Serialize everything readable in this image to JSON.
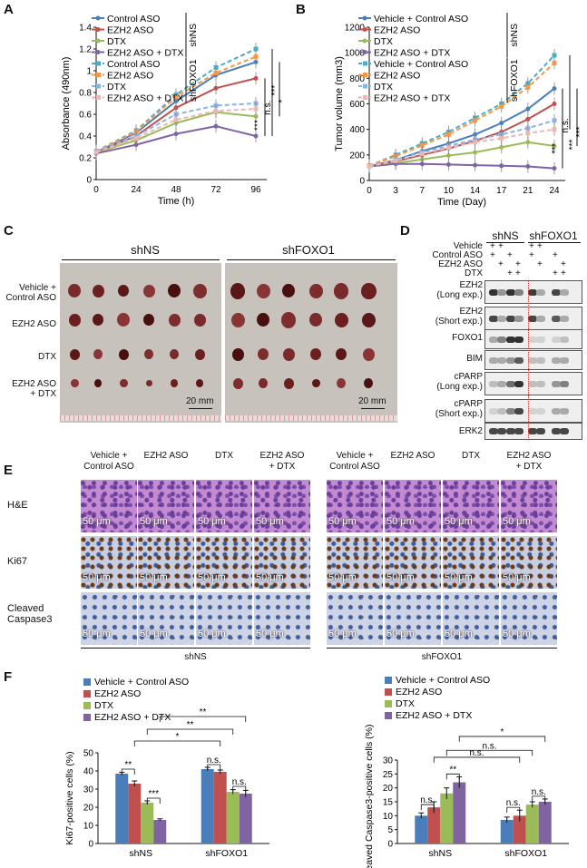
{
  "panels": {
    "A": "A",
    "B": "B",
    "C": "C",
    "D": "D",
    "E": "E",
    "F": "F"
  },
  "colors": {
    "blue": "#4a7ebb",
    "red": "#c0504d",
    "green": "#9bbb59",
    "purple": "#8064a2",
    "orange": "#f79646",
    "lblue": "#4bacc6",
    "lpurple": "#8db3e2",
    "pink": "#e6b9b8"
  },
  "chart_data": [
    {
      "type": "line",
      "panel": "A",
      "xlabel": "Time (h)",
      "ylabel": "Absorbance (490nm)",
      "x": [
        0,
        24,
        48,
        72,
        96
      ],
      "ylim": [
        0,
        1.4
      ],
      "xticks": [
        "0",
        "24",
        "48",
        "72",
        "96"
      ],
      "yticks": [
        "0",
        "0.2",
        "0.4",
        "0.6",
        "0.8",
        "1",
        "1.2",
        "1.4"
      ],
      "group_labels": [
        "shNS",
        "shFOXO1"
      ],
      "sig": [
        "n.s.",
        "***",
        "***",
        "*"
      ],
      "series": [
        {
          "name": "Control ASO",
          "group": "shNS",
          "values": [
            0.25,
            0.43,
            0.72,
            0.96,
            1.08
          ]
        },
        {
          "name": "EZH2 ASO",
          "group": "shNS",
          "values": [
            0.25,
            0.4,
            0.66,
            0.84,
            0.93
          ]
        },
        {
          "name": "DTX",
          "group": "shNS",
          "values": [
            0.25,
            0.36,
            0.52,
            0.62,
            0.58
          ]
        },
        {
          "name": "EZH2 ASO + DTX",
          "group": "shNS",
          "values": [
            0.24,
            0.32,
            0.42,
            0.49,
            0.4
          ]
        },
        {
          "name": "Control ASO",
          "group": "shFOXO1",
          "values": [
            0.26,
            0.45,
            0.78,
            1.03,
            1.2
          ]
        },
        {
          "name": "EZH2 ASO",
          "group": "shFOXO1",
          "values": [
            0.26,
            0.44,
            0.76,
            0.98,
            1.13
          ]
        },
        {
          "name": "DTX",
          "group": "shFOXO1",
          "values": [
            0.26,
            0.4,
            0.6,
            0.68,
            0.7
          ]
        },
        {
          "name": "EZH2 ASO + DTX",
          "group": "shFOXO1",
          "values": [
            0.25,
            0.38,
            0.55,
            0.63,
            0.65
          ]
        }
      ]
    },
    {
      "type": "line",
      "panel": "B",
      "xlabel": "Time (Day)",
      "ylabel": "Tumor volume (mm3)",
      "x": [
        0,
        3,
        7,
        10,
        14,
        17,
        21,
        24
      ],
      "ylim": [
        0,
        1200
      ],
      "xticks": [
        "0",
        "3",
        "7",
        "10",
        "14",
        "17",
        "21",
        "24"
      ],
      "yticks": [
        "0",
        "200",
        "400",
        "600",
        "800",
        "1000",
        "1200"
      ],
      "group_labels": [
        "shNS",
        "shFOXO1"
      ],
      "sig": [
        "n.s.",
        "***",
        "***",
        "***"
      ],
      "series": [
        {
          "name": "Vehicle + Control ASO",
          "group": "shNS",
          "values": [
            110,
            160,
            230,
            290,
            360,
            450,
            560,
            720
          ]
        },
        {
          "name": "EZH2 ASO",
          "group": "shNS",
          "values": [
            110,
            150,
            200,
            250,
            310,
            380,
            480,
            600
          ]
        },
        {
          "name": "DTX",
          "group": "shNS",
          "values": [
            110,
            135,
            165,
            195,
            220,
            260,
            300,
            270
          ]
        },
        {
          "name": "EZH2 ASO + DTX",
          "group": "shNS",
          "values": [
            110,
            130,
            130,
            125,
            120,
            115,
            110,
            95
          ]
        },
        {
          "name": "Vehicle + Control ASO",
          "group": "shFOXO1",
          "values": [
            115,
            200,
            290,
            380,
            490,
            600,
            760,
            980
          ]
        },
        {
          "name": "EZH2 ASO",
          "group": "shFOXO1",
          "values": [
            115,
            190,
            275,
            360,
            470,
            580,
            730,
            920
          ]
        },
        {
          "name": "DTX",
          "group": "shFOXO1",
          "values": [
            110,
            160,
            220,
            270,
            320,
            360,
            410,
            470
          ]
        },
        {
          "name": "EZH2 ASO + DTX",
          "group": "shFOXO1",
          "values": [
            110,
            155,
            210,
            255,
            300,
            330,
            370,
            400
          ]
        }
      ]
    },
    {
      "type": "bar",
      "panel": "F-left",
      "ylabel": "Ki67-positive cells (%)",
      "ylim": [
        0,
        50
      ],
      "yticks": [
        "0",
        "10",
        "20",
        "30",
        "40",
        "50"
      ],
      "categories": [
        "shNS",
        "shFOXO1"
      ],
      "sig": [
        "**",
        "***",
        "n.s.",
        "n.s.",
        "*",
        "**",
        "**"
      ],
      "series": [
        {
          "name": "Vehicle + Control ASO",
          "values": [
            38.5,
            41
          ]
        },
        {
          "name": "EZH2 ASO",
          "values": [
            33,
            39.5
          ]
        },
        {
          "name": "DTX",
          "values": [
            22.5,
            28.5
          ]
        },
        {
          "name": "EZH2 ASO + DTX",
          "values": [
            13,
            27.5
          ]
        }
      ],
      "errors": [
        [
          0.8,
          1.0
        ],
        [
          1.5,
          1.0
        ],
        [
          1.0,
          1.2
        ],
        [
          0.6,
          1.8
        ]
      ]
    },
    {
      "type": "bar",
      "panel": "F-right",
      "ylabel": "Cleaved Caspase3-positive cells (%)",
      "ylim": [
        0,
        30
      ],
      "yticks": [
        "0",
        "5",
        "10",
        "15",
        "20",
        "25",
        "30"
      ],
      "categories": [
        "shNS",
        "shFOXO1"
      ],
      "sig": [
        "n.s.",
        "n.s.",
        "**",
        "n.s.",
        "n.s.",
        "n.s.",
        "*",
        "**"
      ],
      "series": [
        {
          "name": "Vehicle + Control ASO",
          "values": [
            10,
            8.5
          ]
        },
        {
          "name": "EZH2 ASO",
          "values": [
            13,
            10
          ]
        },
        {
          "name": "DTX",
          "values": [
            18,
            14
          ]
        },
        {
          "name": "EZH2 ASO + DTX",
          "values": [
            22,
            15
          ]
        }
      ],
      "errors": [
        [
          1.0,
          1.0
        ],
        [
          2.0,
          2.0
        ],
        [
          2.0,
          1.0
        ],
        [
          2.0,
          1.0
        ]
      ]
    }
  ],
  "photoC": {
    "groups": [
      "shNS",
      "shFOXO1"
    ],
    "rows": [
      "Vehicle +\nControl ASO",
      "EZH2 ASO",
      "DTX",
      "EZH2 ASO\n+ DTX"
    ],
    "scale": "20 mm"
  },
  "blotD": {
    "groups": [
      "shNS",
      "shFOXO1"
    ],
    "conditions": [
      {
        "label": "Vehicle",
        "marks": [
          "+",
          "+",
          "",
          "",
          "+",
          "+",
          "",
          ""
        ]
      },
      {
        "label": "Control ASO",
        "marks": [
          "+",
          "",
          "+",
          "",
          "+",
          "",
          "+",
          ""
        ]
      },
      {
        "label": "EZH2 ASO",
        "marks": [
          "",
          "+",
          "",
          "+",
          "",
          "+",
          "",
          "+"
        ]
      },
      {
        "label": "DTX",
        "marks": [
          "",
          "",
          "+",
          "+",
          "",
          "",
          "+",
          "+"
        ]
      }
    ],
    "rows": [
      "EZH2\n(Long exp.)",
      "EZH2\n(Short exp.)",
      "FOXO1",
      "BIM",
      "cPARP\n(Long exp.)",
      "cPARP\n(Short exp.)",
      "ERK2"
    ]
  },
  "histoE": {
    "columns": [
      "Vehicle +\nControl ASO",
      "EZH2 ASO",
      "DTX",
      "EZH2 ASO\n+ DTX"
    ],
    "rows": [
      "H&E",
      "Ki67",
      "Cleaved\nCaspase3"
    ],
    "groups": [
      "shNS",
      "shFOXO1"
    ],
    "scale": "50 μm"
  }
}
